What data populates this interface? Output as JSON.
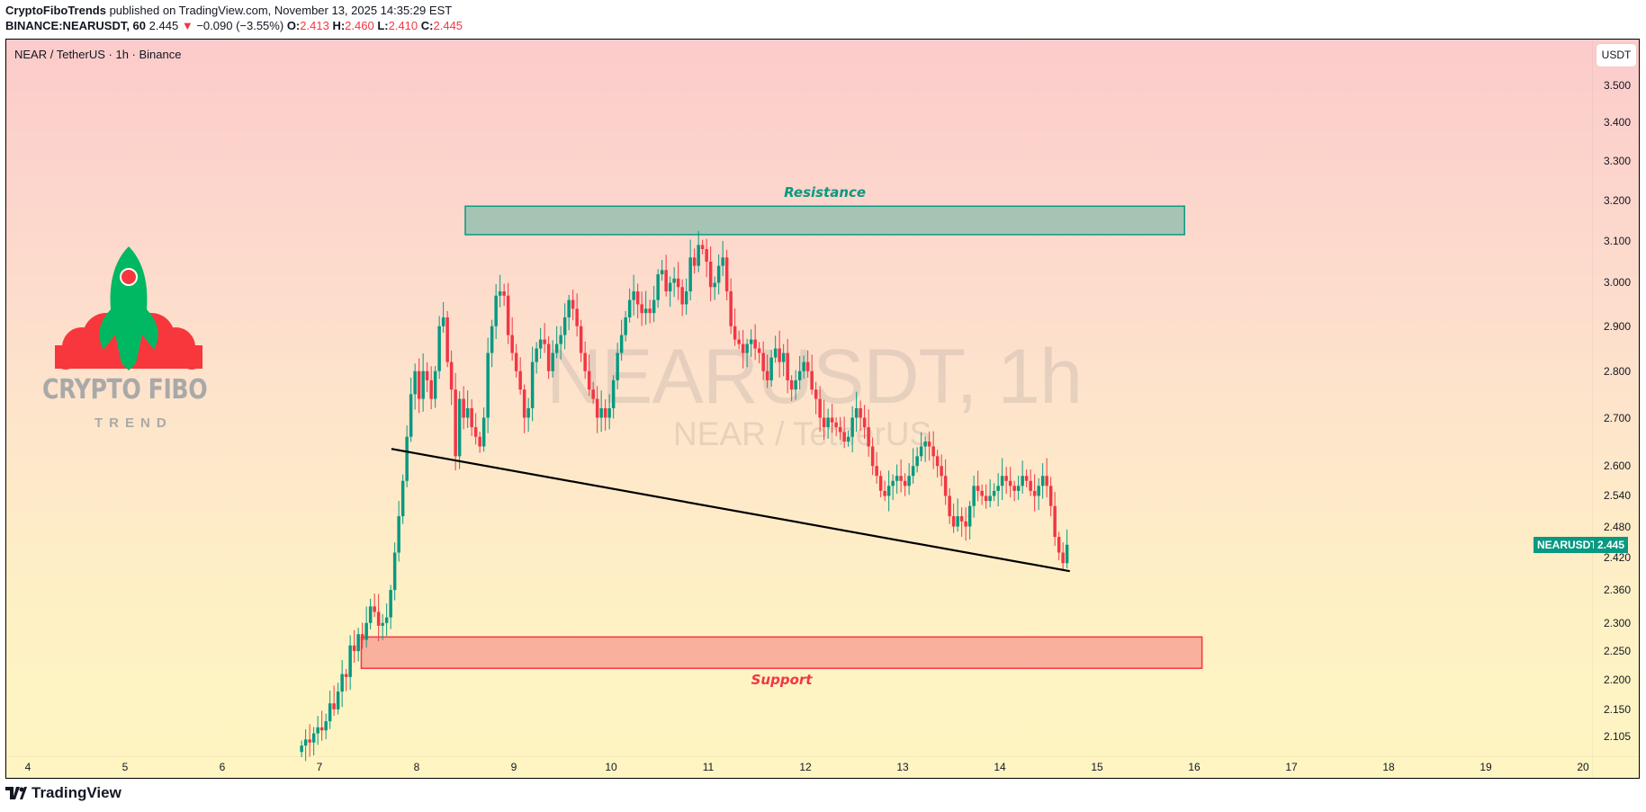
{
  "header": {
    "author": "CryptoFiboTrends",
    "published_text": " published on TradingView.com, November 13, 2025 14:35:29 EST",
    "symbol_line_prefix": "BINANCE:NEARUSDT, 60",
    "last_price": "2.445",
    "change": "−0.090 (−3.55%)",
    "change_direction_icon": "triangle-down-icon",
    "ohlc": {
      "O": "2.413",
      "H": "2.460",
      "L": "2.410",
      "C": "2.445"
    }
  },
  "chart": {
    "title": "NEAR / TetherUS · 1h · Binance",
    "currency_button": "USDT",
    "watermark_main": "NEARUSDT, 1h",
    "watermark_sub": "NEAR / TetherUS",
    "price_badge": {
      "symbol": "NEARUSDT",
      "price": "2.445"
    },
    "colors": {
      "up": "#089981",
      "down": "#f23645",
      "resistance_fill": "#a6c4b4",
      "resistance_border": "#089981",
      "support_fill": "#f9b09c",
      "support_border": "#f23645",
      "trendline": "#000000"
    }
  },
  "chart_data": {
    "type": "candlestick",
    "title": "NEAR / TetherUS · 1h · Binance",
    "xlabel": "",
    "ylabel": "USDT",
    "y_scale": "log",
    "ylim": [
      2.08,
      3.6
    ],
    "x_ticks": [
      "4",
      "5",
      "6",
      "7",
      "8",
      "9",
      "10",
      "11",
      "12",
      "13",
      "14",
      "15",
      "16",
      "17",
      "18",
      "19",
      "20"
    ],
    "y_ticks": [
      "3.500",
      "3.400",
      "3.300",
      "3.200",
      "3.100",
      "3.000",
      "2.900",
      "2.800",
      "2.700",
      "2.600",
      "2.540",
      "2.480",
      "2.420",
      "2.360",
      "2.300",
      "2.250",
      "2.200",
      "2.150",
      "2.105"
    ],
    "last_price": 2.445,
    "annotations": [
      {
        "type": "zone",
        "label": "Resistance",
        "top": 3.185,
        "bottom": 3.115,
        "from_day": 8.5,
        "to_day": 15.9
      },
      {
        "type": "zone",
        "label": "Support",
        "top": 2.275,
        "bottom": 2.22,
        "from_day": 7.43,
        "to_day": 16.08
      },
      {
        "type": "trendline",
        "from": {
          "day": 7.74,
          "price": 2.635
        },
        "to": {
          "day": 14.72,
          "price": 2.395
        }
      }
    ],
    "start_day": 6.8,
    "hours_per_candle": 1,
    "closes": [
      2.09,
      2.1,
      2.095,
      2.11,
      2.12,
      2.115,
      2.13,
      2.16,
      2.15,
      2.18,
      2.21,
      2.205,
      2.26,
      2.25,
      2.28,
      2.27,
      2.3,
      2.33,
      2.32,
      2.295,
      2.3,
      2.31,
      2.36,
      2.43,
      2.5,
      2.57,
      2.66,
      2.75,
      2.8,
      2.74,
      2.8,
      2.78,
      2.74,
      2.8,
      2.9,
      2.92,
      2.82,
      2.76,
      2.62,
      2.74,
      2.7,
      2.72,
      2.68,
      2.66,
      2.64,
      2.7,
      2.84,
      2.9,
      2.97,
      2.98,
      2.97,
      2.88,
      2.84,
      2.8,
      2.76,
      2.7,
      2.72,
      2.82,
      2.85,
      2.87,
      2.86,
      2.8,
      2.84,
      2.86,
      2.88,
      2.92,
      2.96,
      2.94,
      2.9,
      2.84,
      2.8,
      2.76,
      2.74,
      2.7,
      2.72,
      2.7,
      2.72,
      2.78,
      2.84,
      2.88,
      2.92,
      2.96,
      2.98,
      2.95,
      2.93,
      2.94,
      2.93,
      2.96,
      3.02,
      3.03,
      2.98,
      3.0,
      3.01,
      2.99,
      2.95,
      2.98,
      3.06,
      3.04,
      3.09,
      3.08,
      3.05,
      2.99,
      3.0,
      3.04,
      3.06,
      2.98,
      2.9,
      2.87,
      2.86,
      2.84,
      2.86,
      2.87,
      2.85,
      2.84,
      2.8,
      2.78,
      2.83,
      2.85,
      2.82,
      2.84,
      2.78,
      2.76,
      2.78,
      2.8,
      2.82,
      2.8,
      2.76,
      2.74,
      2.7,
      2.68,
      2.7,
      2.69,
      2.68,
      2.67,
      2.65,
      2.66,
      2.7,
      2.72,
      2.7,
      2.68,
      2.64,
      2.6,
      2.58,
      2.55,
      2.54,
      2.56,
      2.57,
      2.58,
      2.57,
      2.56,
      2.58,
      2.6,
      2.62,
      2.64,
      2.65,
      2.64,
      2.62,
      2.6,
      2.58,
      2.54,
      2.5,
      2.48,
      2.5,
      2.49,
      2.48,
      2.52,
      2.56,
      2.55,
      2.54,
      2.53,
      2.54,
      2.55,
      2.56,
      2.58,
      2.57,
      2.56,
      2.55,
      2.56,
      2.58,
      2.57,
      2.55,
      2.54,
      2.56,
      2.58,
      2.56,
      2.52,
      2.46,
      2.43,
      2.41,
      2.445
    ]
  }
}
